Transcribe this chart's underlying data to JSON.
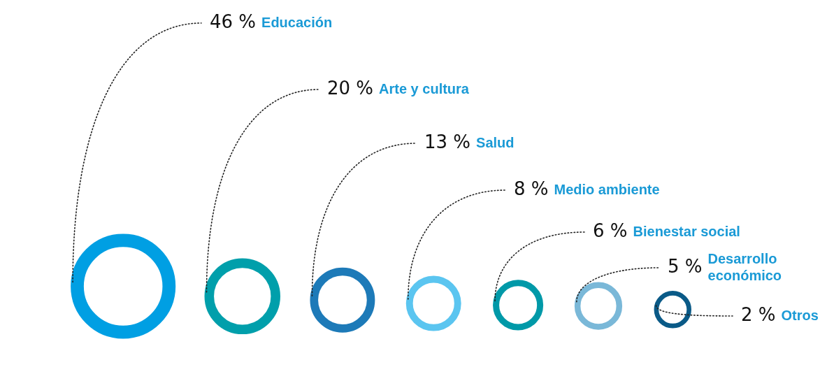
{
  "chart_data": {
    "type": "other",
    "categories": [
      "Educación",
      "Arte y cultura",
      "Salud",
      "Medio ambiente",
      "Bienestar social",
      "Desarrollo económico",
      "Otros"
    ],
    "values": [
      46,
      20,
      13,
      8,
      6,
      5,
      2
    ],
    "value_labels": [
      "46 %",
      "20 %",
      "13 %",
      "8 %",
      "6 %",
      "5 %",
      "2 %"
    ],
    "colors": [
      "#009fe3",
      "#009fab",
      "#1d7ab8",
      "#5bc5f0",
      "#0099a8",
      "#7ab8d8",
      "#0a5a87"
    ],
    "legend": false
  }
}
